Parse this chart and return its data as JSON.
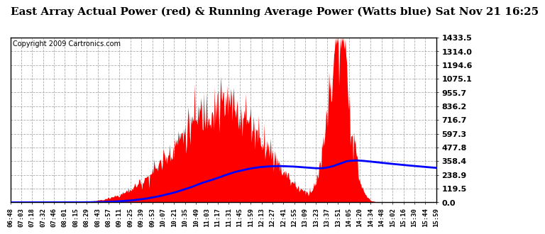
{
  "title": "East Array Actual Power (red) & Running Average Power (Watts blue) Sat Nov 21 16:25",
  "copyright": "Copyright 2009 Cartronics.com",
  "ylabel_right": [
    "1433.5",
    "1314.0",
    "1194.6",
    "1075.1",
    "955.7",
    "836.2",
    "716.7",
    "597.3",
    "477.8",
    "358.4",
    "238.9",
    "119.5",
    "0.0"
  ],
  "ytick_vals": [
    1433.5,
    1314.0,
    1194.6,
    1075.1,
    955.7,
    836.2,
    716.7,
    597.3,
    477.8,
    358.4,
    238.9,
    119.5,
    0.0
  ],
  "ymax": 1433.5,
  "xtick_labels": [
    "06:48",
    "07:03",
    "07:18",
    "07:32",
    "07:46",
    "08:01",
    "08:15",
    "08:29",
    "08:43",
    "08:57",
    "09:11",
    "09:25",
    "09:39",
    "09:53",
    "10:07",
    "10:21",
    "10:35",
    "10:49",
    "11:03",
    "11:17",
    "11:31",
    "11:45",
    "11:59",
    "12:13",
    "12:27",
    "12:41",
    "12:55",
    "13:09",
    "13:23",
    "13:37",
    "13:51",
    "14:05",
    "14:20",
    "14:34",
    "14:48",
    "15:02",
    "15:16",
    "15:30",
    "15:44",
    "15:59"
  ],
  "plot_bg": "#ffffff",
  "red_color": "#ff0000",
  "blue_color": "#0000ff",
  "grid_color": "#999999",
  "title_fontsize": 11,
  "copyright_fontsize": 7
}
